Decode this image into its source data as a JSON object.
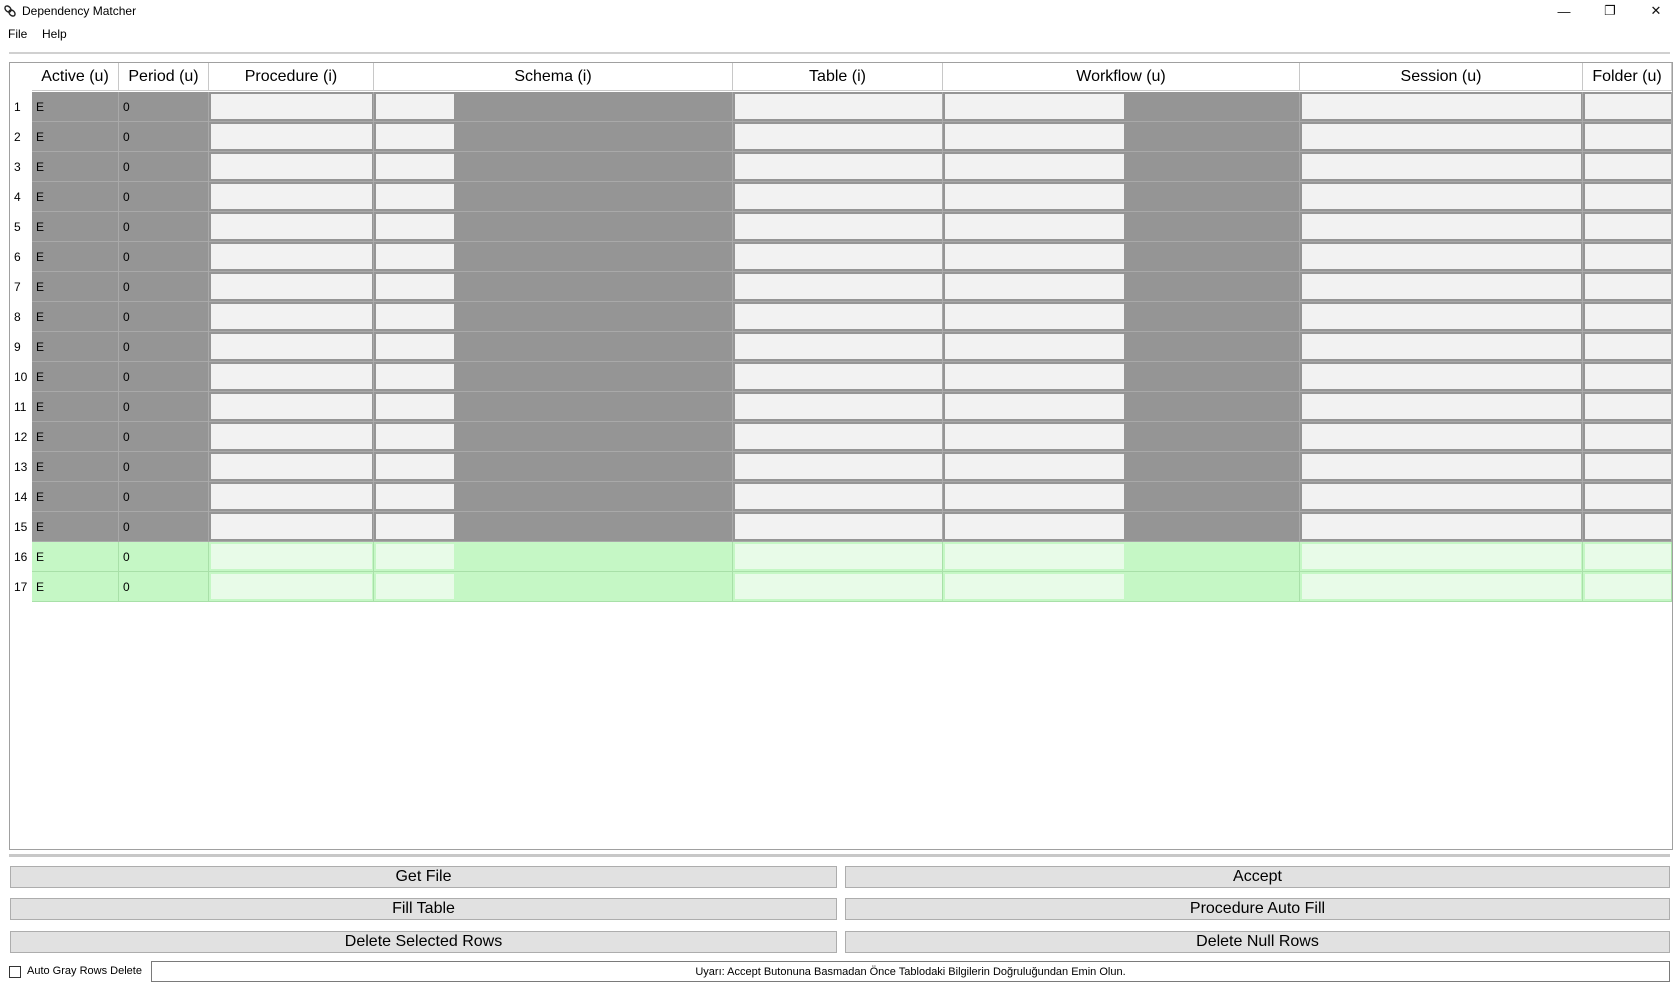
{
  "window": {
    "title": "Dependency Matcher",
    "minimize_glyph": "—",
    "restore_glyph": "❐",
    "close_glyph": "✕"
  },
  "menu": [
    "File",
    "Help"
  ],
  "columns": [
    "Active (u)",
    "Period (u)",
    "Procedure (i)",
    "Schema (i)",
    "Table (i)",
    "Workflow (u)",
    "Session (u)",
    "Folder (u)"
  ],
  "rows": [
    {
      "n": "1",
      "active": "E",
      "period": "0",
      "state": "gray"
    },
    {
      "n": "2",
      "active": "E",
      "period": "0",
      "state": "gray"
    },
    {
      "n": "3",
      "active": "E",
      "period": "0",
      "state": "gray"
    },
    {
      "n": "4",
      "active": "E",
      "period": "0",
      "state": "gray"
    },
    {
      "n": "5",
      "active": "E",
      "period": "0",
      "state": "gray"
    },
    {
      "n": "6",
      "active": "E",
      "period": "0",
      "state": "gray"
    },
    {
      "n": "7",
      "active": "E",
      "period": "0",
      "state": "gray"
    },
    {
      "n": "8",
      "active": "E",
      "period": "0",
      "state": "gray"
    },
    {
      "n": "9",
      "active": "E",
      "period": "0",
      "state": "gray"
    },
    {
      "n": "10",
      "active": "E",
      "period": "0",
      "state": "gray"
    },
    {
      "n": "11",
      "active": "E",
      "period": "0",
      "state": "gray"
    },
    {
      "n": "12",
      "active": "E",
      "period": "0",
      "state": "gray"
    },
    {
      "n": "13",
      "active": "E",
      "period": "0",
      "state": "gray"
    },
    {
      "n": "14",
      "active": "E",
      "period": "0",
      "state": "gray"
    },
    {
      "n": "15",
      "active": "E",
      "period": "0",
      "state": "gray"
    },
    {
      "n": "16",
      "active": "E",
      "period": "0",
      "state": "green"
    },
    {
      "n": "17",
      "active": "E",
      "period": "0",
      "state": "green"
    }
  ],
  "buttons": {
    "get_file": "Get File",
    "accept": "Accept",
    "fill_table": "Fill Table",
    "procedure_auto_fill": "Procedure Auto Fill",
    "delete_selected_rows": "Delete Selected Rows",
    "delete_null_rows": "Delete Null Rows"
  },
  "auto_gray_label": "Auto Gray Rows Delete",
  "warning": "Uyarı: Accept Butonuna Basmadan Önce Tablodaki Bilgilerin Doğruluğundan Emin Olun.",
  "colors": {
    "gray_row": "#959595",
    "green_row": "#c5f7c5"
  }
}
